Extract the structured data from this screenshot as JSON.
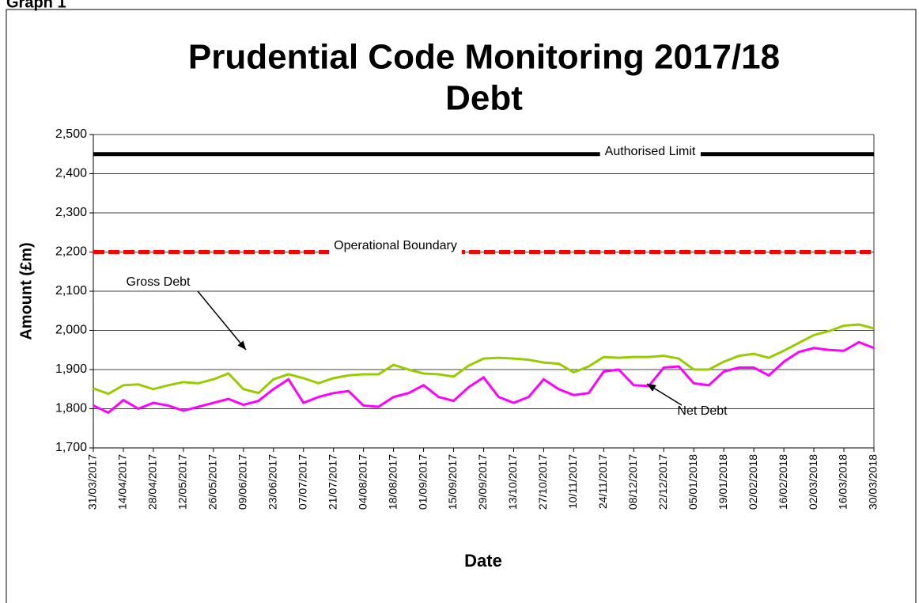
{
  "page_label": "Graph 1",
  "chart_data": {
    "type": "line",
    "title": "Prudential Code Monitoring 2017/18",
    "subtitle": "Debt",
    "x_label": "Date",
    "y_label": "Amount (£m)",
    "categories": [
      "31/03/2017",
      null,
      "14/04/2017",
      null,
      "28/04/2017",
      null,
      "12/05/2017",
      null,
      "26/05/2017",
      null,
      "09/06/2017",
      null,
      "23/06/2017",
      null,
      "07/07/2017",
      null,
      "21/07/2017",
      null,
      "04/08/2017",
      null,
      "18/08/2017",
      null,
      "01/09/2017",
      null,
      "15/09/2017",
      null,
      "29/09/2017",
      null,
      "13/10/2017",
      null,
      "27/10/2017",
      null,
      "10/11/2017",
      null,
      "24/11/2017",
      null,
      "08/12/2017",
      null,
      "22/12/2017",
      null,
      "05/01/2018",
      null,
      "19/01/2018",
      null,
      "02/02/2018",
      null,
      "16/02/2018",
      null,
      "02/03/2018",
      null,
      "16/03/2018",
      null,
      "30/03/2018"
    ],
    "series": [
      {
        "name": "Gross Debt",
        "color": "#99cc00",
        "values": [
          1852,
          1838,
          1860,
          1862,
          1850,
          1860,
          1868,
          1865,
          1875,
          1890,
          1850,
          1840,
          1875,
          1888,
          1878,
          1865,
          1878,
          1885,
          1888,
          1888,
          1912,
          1900,
          1890,
          1888,
          1882,
          1910,
          1928,
          1930,
          1928,
          1925,
          1918,
          1915,
          1893,
          1908,
          1932,
          1930,
          1932,
          1932,
          1935,
          1928,
          1900,
          1900,
          1920,
          1935,
          1940,
          1930,
          1948,
          1968,
          1988,
          1998,
          2012,
          2015,
          2005
        ]
      },
      {
        "name": "Net Debt",
        "color": "#ff00ff",
        "values": [
          1808,
          1790,
          1822,
          1800,
          1815,
          1808,
          1795,
          1805,
          1815,
          1825,
          1810,
          1820,
          1850,
          1875,
          1815,
          1830,
          1840,
          1845,
          1808,
          1805,
          1830,
          1840,
          1860,
          1830,
          1820,
          1855,
          1880,
          1830,
          1815,
          1830,
          1875,
          1850,
          1835,
          1840,
          1895,
          1900,
          1860,
          1858,
          1905,
          1908,
          1865,
          1860,
          1895,
          1905,
          1905,
          1885,
          1920,
          1945,
          1955,
          1950,
          1948,
          1970,
          1955
        ]
      }
    ],
    "reference_lines": [
      {
        "name": "Authorised Limit",
        "value": 2450,
        "color": "#000000",
        "style": "solid"
      },
      {
        "name": "Operational Boundary",
        "value": 2200,
        "color": "#ff0000",
        "style": "dashed"
      }
    ],
    "ylim": [
      1700,
      2500
    ],
    "yticks": [
      {
        "value": 1700,
        "label": "1,700"
      },
      {
        "value": 1800,
        "label": "1,800"
      },
      {
        "value": 1900,
        "label": "1,900"
      },
      {
        "value": 2000,
        "label": "2,000"
      },
      {
        "value": 2100,
        "label": "2,100"
      },
      {
        "value": 2200,
        "label": "2,200"
      },
      {
        "value": 2300,
        "label": "2,300"
      },
      {
        "value": 2400,
        "label": "2,400"
      },
      {
        "value": 2500,
        "label": "2,500"
      }
    ],
    "grid": true
  }
}
